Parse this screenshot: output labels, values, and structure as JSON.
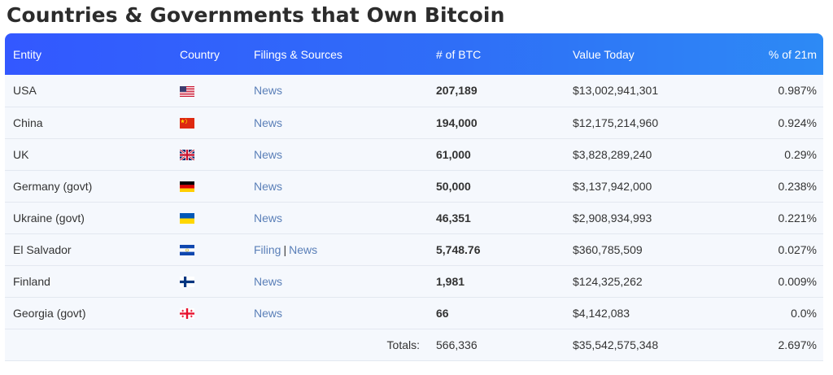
{
  "page": {
    "title": "Countries & Governments that Own Bitcoin"
  },
  "table": {
    "headers": {
      "entity": "Entity",
      "country": "Country",
      "filings": "Filings & Sources",
      "btc": "# of BTC",
      "value": "Value Today",
      "pct": "% of 21m"
    },
    "rows": [
      {
        "entity": "USA",
        "flag": "us-flag-icon",
        "sources": [
          "News"
        ],
        "btc": "207,189",
        "value": "$13,002,941,301",
        "pct": "0.987%"
      },
      {
        "entity": "China",
        "flag": "china-flag-icon",
        "sources": [
          "News"
        ],
        "btc": "194,000",
        "value": "$12,175,214,960",
        "pct": "0.924%"
      },
      {
        "entity": "UK",
        "flag": "uk-flag-icon",
        "sources": [
          "News"
        ],
        "btc": "61,000",
        "value": "$3,828,289,240",
        "pct": "0.29%"
      },
      {
        "entity": "Germany (govt)",
        "flag": "germany-flag-icon",
        "sources": [
          "News"
        ],
        "btc": "50,000",
        "value": "$3,137,942,000",
        "pct": "0.238%"
      },
      {
        "entity": "Ukraine (govt)",
        "flag": "ukraine-flag-icon",
        "sources": [
          "News"
        ],
        "btc": "46,351",
        "value": "$2,908,934,993",
        "pct": "0.221%"
      },
      {
        "entity": "El Salvador",
        "flag": "el-salvador-flag-icon",
        "sources": [
          "Filing",
          "News"
        ],
        "btc": "5,748.76",
        "value": "$360,785,509",
        "pct": "0.027%"
      },
      {
        "entity": "Finland",
        "flag": "finland-flag-icon",
        "sources": [
          "News"
        ],
        "btc": "1,981",
        "value": "$124,325,262",
        "pct": "0.009%"
      },
      {
        "entity": "Georgia (govt)",
        "flag": "georgia-flag-icon",
        "sources": [
          "News"
        ],
        "btc": "66",
        "value": "$4,142,083",
        "pct": "0.0%"
      }
    ],
    "totals": {
      "label": "Totals:",
      "btc": "566,336",
      "value": "$35,542,575,348",
      "pct": "2.697%"
    }
  }
}
